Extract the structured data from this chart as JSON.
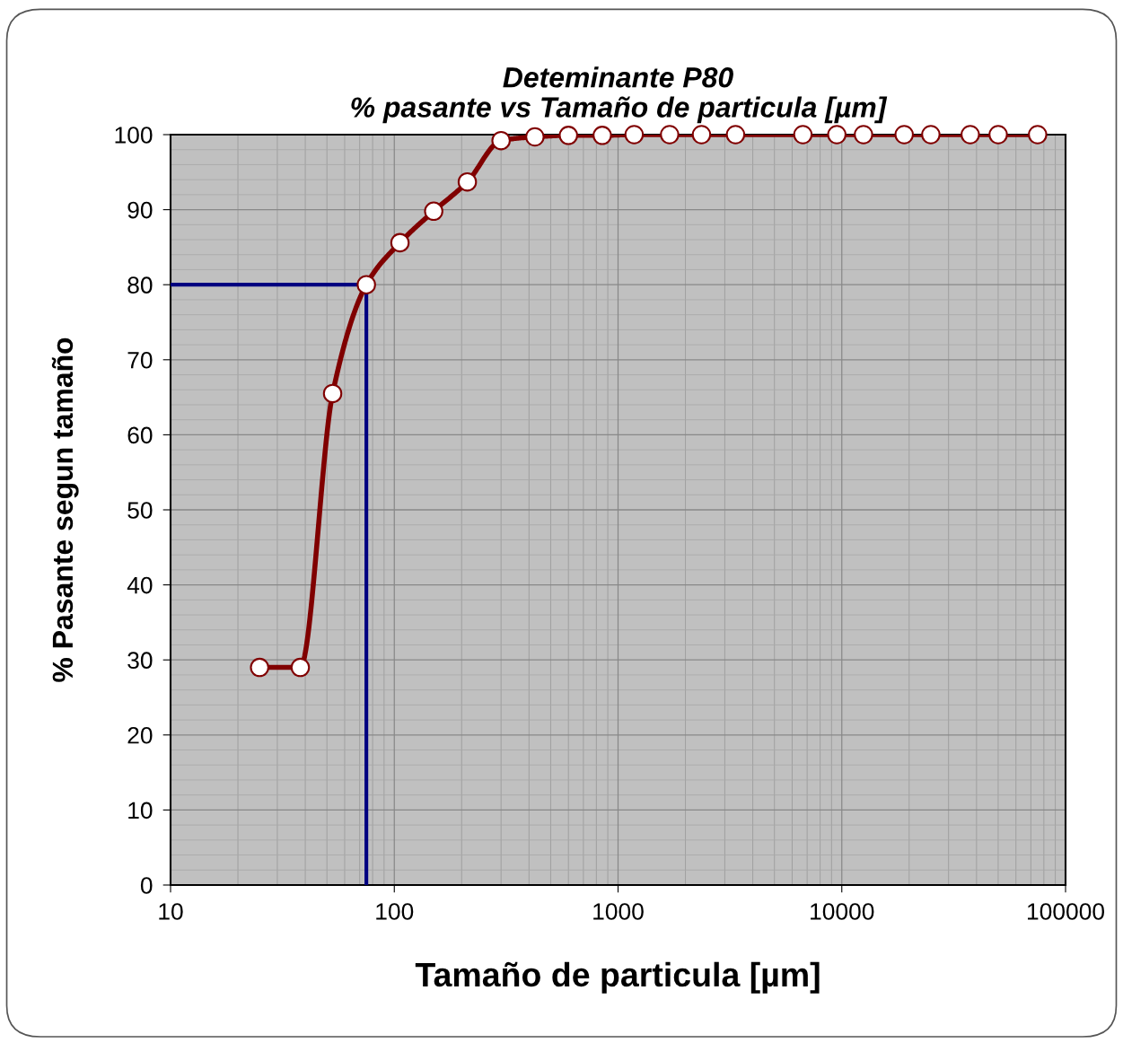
{
  "chart_data": {
    "type": "line",
    "title": "Deteminante P80\n% pasante vs Tamaño de particula [µm]",
    "xlabel": "Tamaño de particula [µm]",
    "ylabel": "% Pasante segun tamaño",
    "x": [
      25,
      38,
      53,
      75,
      106,
      150,
      212,
      300,
      425,
      600,
      850,
      1180,
      1700,
      2360,
      3350,
      6700,
      9500,
      12500,
      19000,
      25000,
      37500,
      50000,
      75000
    ],
    "series": [
      {
        "color": "#800000",
        "values": [
          29,
          29,
          65.5,
          80,
          85.6,
          89.8,
          93.7,
          99.2,
          99.7,
          99.9,
          99.9,
          100,
          100,
          100,
          100,
          100,
          100,
          100,
          100,
          100,
          100,
          100,
          100
        ]
      }
    ],
    "log": "x",
    "xlim": [
      10,
      100000
    ],
    "xticks": [
      10,
      100,
      1000,
      10000,
      100000
    ],
    "ylim": [
      0,
      100
    ],
    "yticks": [
      0,
      10,
      20,
      30,
      40,
      50,
      60,
      70,
      80,
      90,
      100
    ],
    "grid": true,
    "marker": "circle",
    "line_style": "solid",
    "ref_lines": [
      {
        "axis": "y",
        "value": 80,
        "color": "#000080"
      },
      {
        "axis": "x",
        "value": 75,
        "color": "#000080"
      }
    ]
  }
}
